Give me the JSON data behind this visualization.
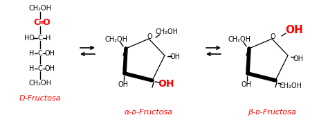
{
  "bg_color": "#ffffff",
  "red": "#ff0000",
  "black": "#000000",
  "label1": "D-Fructosa",
  "label2": "α-ᴅ-Fructosa",
  "label3": "β-ᴅ-Fructosa"
}
